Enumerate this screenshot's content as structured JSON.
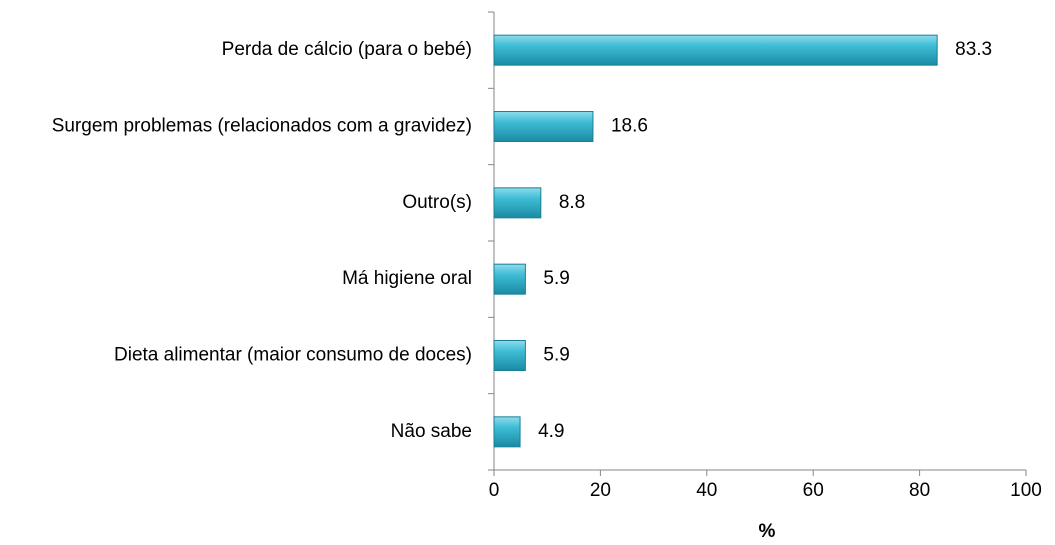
{
  "chart_data": {
    "type": "bar",
    "orientation": "horizontal",
    "categories": [
      "Perda de cálcio (para o bebé)",
      "Surgem problemas (relacionados com a gravidez)",
      "Outro(s)",
      "Má higiene oral",
      "Dieta alimentar (maior consumo de doces)",
      "Não sabe"
    ],
    "values": [
      83.3,
      18.6,
      8.8,
      5.9,
      5.9,
      4.9
    ],
    "color": "#31b6d1",
    "x_label": "%",
    "xlim": [
      0,
      100
    ],
    "xticks": [
      0,
      20,
      40,
      60,
      80,
      100
    ],
    "grid": false
  }
}
